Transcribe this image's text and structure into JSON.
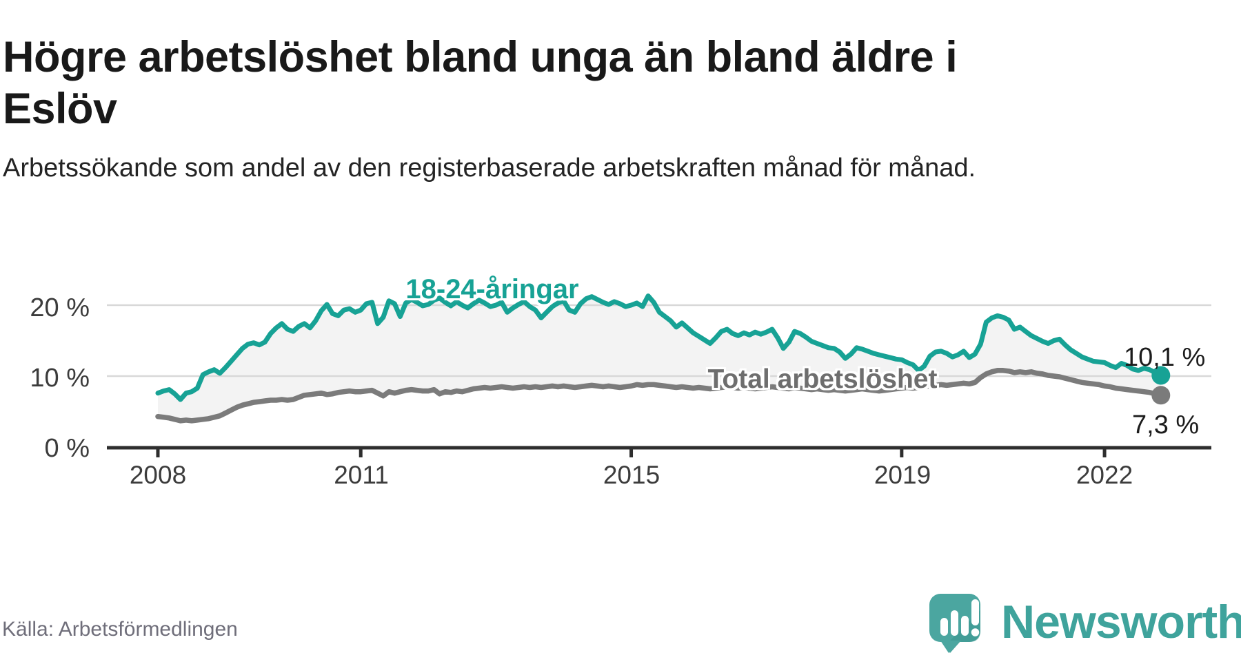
{
  "header": {
    "title": "Högre arbetslöshet bland unga än bland äldre i Eslöv",
    "subtitle": "Arbetssökande som andel av den registerbaserade arbetskraften månad för månad."
  },
  "footer": {
    "source": "Källa: Arbetsförmedlingen",
    "brand": "Newsworthy"
  },
  "colors": {
    "youth_line": "#17a295",
    "total_line": "#7b7b7b",
    "area_fill": "#f3f3f3",
    "gridline": "#d8d8d8",
    "axis": "#2e2e2e",
    "logo_teal": "#4ba6a0",
    "brand_text": "#3fa39c"
  },
  "chart_data": {
    "type": "line",
    "title": "Högre arbetslöshet bland unga än bland äldre i Eslöv",
    "unit": "%",
    "grid": "horizontal",
    "legend_position": "inline-labels",
    "x_range": {
      "start": "2008-01",
      "end": "2022-11",
      "interval": "monthly"
    },
    "x_ticks": {
      "labels": [
        "2008",
        "2011",
        "2015",
        "2019",
        "2022"
      ],
      "month_index": [
        0,
        36,
        84,
        132,
        168
      ]
    },
    "y_axis": {
      "tick_labels": [
        "0 %",
        "10 %",
        "20 %"
      ],
      "tick_values": [
        0,
        10,
        20
      ],
      "range": [
        0,
        22
      ]
    },
    "series": [
      {
        "name": "18-24-åringar",
        "color": "#17a295",
        "end_label": "10,1 %",
        "last_value": 10.1,
        "values": [
          7.6,
          7.9,
          8.1,
          7.5,
          6.7,
          7.6,
          7.8,
          8.3,
          10.2,
          10.6,
          10.9,
          10.4,
          11.2,
          12.1,
          13.0,
          13.9,
          14.5,
          14.7,
          14.4,
          14.8,
          16.0,
          16.8,
          17.4,
          16.6,
          16.3,
          17.0,
          17.4,
          16.8,
          17.8,
          19.2,
          20.1,
          18.8,
          18.5,
          19.3,
          19.5,
          19.0,
          19.3,
          20.2,
          20.4,
          17.4,
          18.3,
          20.6,
          20.2,
          18.4,
          20.3,
          20.8,
          20.4,
          19.9,
          20.1,
          20.7,
          21.0,
          20.4,
          19.9,
          20.5,
          20.0,
          19.6,
          20.2,
          20.7,
          20.3,
          19.8,
          20.0,
          20.4,
          19.0,
          19.6,
          20.1,
          20.5,
          19.8,
          19.3,
          18.2,
          19.0,
          19.8,
          20.3,
          20.6,
          19.3,
          19.0,
          20.2,
          20.9,
          21.2,
          20.8,
          20.4,
          20.1,
          20.5,
          20.2,
          19.8,
          20.0,
          20.3,
          19.8,
          21.3,
          20.4,
          19.0,
          18.4,
          17.8,
          16.9,
          17.5,
          16.8,
          16.1,
          15.6,
          15.1,
          14.6,
          15.4,
          16.3,
          16.6,
          16.0,
          15.7,
          16.1,
          15.8,
          16.2,
          15.9,
          16.2,
          16.6,
          15.4,
          13.9,
          14.8,
          16.3,
          16.0,
          15.5,
          14.9,
          14.6,
          14.3,
          14.0,
          13.9,
          13.4,
          12.5,
          13.1,
          14.0,
          13.8,
          13.5,
          13.2,
          13.0,
          12.8,
          12.6,
          12.4,
          12.3,
          11.9,
          11.6,
          10.8,
          11.4,
          12.8,
          13.4,
          13.5,
          13.2,
          12.7,
          13.0,
          13.5,
          12.6,
          13.1,
          14.5,
          17.6,
          18.2,
          18.5,
          18.3,
          17.9,
          16.6,
          16.9,
          16.3,
          15.7,
          15.3,
          14.9,
          14.6,
          15.0,
          15.2,
          14.4,
          13.7,
          13.2,
          12.7,
          12.4,
          12.1,
          12.0,
          11.9,
          11.5,
          11.2,
          11.8,
          11.5,
          11.0,
          10.8,
          11.1,
          10.9,
          10.5,
          10.1
        ]
      },
      {
        "name": "Total arbetslöshet",
        "color": "#7b7b7b",
        "end_label": "7,3 %",
        "last_value": 7.3,
        "values": [
          4.3,
          4.2,
          4.1,
          3.9,
          3.7,
          3.8,
          3.7,
          3.8,
          3.9,
          4.0,
          4.2,
          4.4,
          4.8,
          5.2,
          5.6,
          5.9,
          6.1,
          6.3,
          6.4,
          6.5,
          6.6,
          6.6,
          6.7,
          6.6,
          6.7,
          7.0,
          7.3,
          7.4,
          7.5,
          7.6,
          7.4,
          7.5,
          7.7,
          7.8,
          7.9,
          7.8,
          7.8,
          7.9,
          8.0,
          7.6,
          7.2,
          7.8,
          7.6,
          7.8,
          8.0,
          8.1,
          8.0,
          7.9,
          7.9,
          8.1,
          7.5,
          7.8,
          7.7,
          7.9,
          7.8,
          8.0,
          8.2,
          8.3,
          8.4,
          8.3,
          8.4,
          8.5,
          8.4,
          8.3,
          8.4,
          8.5,
          8.4,
          8.5,
          8.4,
          8.5,
          8.6,
          8.5,
          8.6,
          8.5,
          8.4,
          8.5,
          8.6,
          8.7,
          8.6,
          8.5,
          8.6,
          8.5,
          8.4,
          8.5,
          8.6,
          8.8,
          8.7,
          8.8,
          8.8,
          8.7,
          8.6,
          8.5,
          8.4,
          8.5,
          8.4,
          8.3,
          8.4,
          8.3,
          8.2,
          8.3,
          8.4,
          8.5,
          8.4,
          8.3,
          8.4,
          8.3,
          8.2,
          8.3,
          8.4,
          8.5,
          8.4,
          8.3,
          8.2,
          8.4,
          8.3,
          8.2,
          8.1,
          8.2,
          8.1,
          8.0,
          8.1,
          8.0,
          7.9,
          8.0,
          8.1,
          8.2,
          8.1,
          8.0,
          7.9,
          8.0,
          8.1,
          8.2,
          8.3,
          8.4,
          8.3,
          8.4,
          8.5,
          8.6,
          8.7,
          8.8,
          8.7,
          8.8,
          8.9,
          9.0,
          8.9,
          9.1,
          9.8,
          10.3,
          10.6,
          10.8,
          10.8,
          10.7,
          10.5,
          10.6,
          10.5,
          10.6,
          10.4,
          10.3,
          10.1,
          10.0,
          9.9,
          9.7,
          9.5,
          9.3,
          9.1,
          9.0,
          8.9,
          8.8,
          8.6,
          8.5,
          8.3,
          8.2,
          8.1,
          8.0,
          7.9,
          7.8,
          7.7,
          7.5,
          7.3
        ]
      }
    ],
    "area_between_series_color": "#f3f3f3"
  }
}
